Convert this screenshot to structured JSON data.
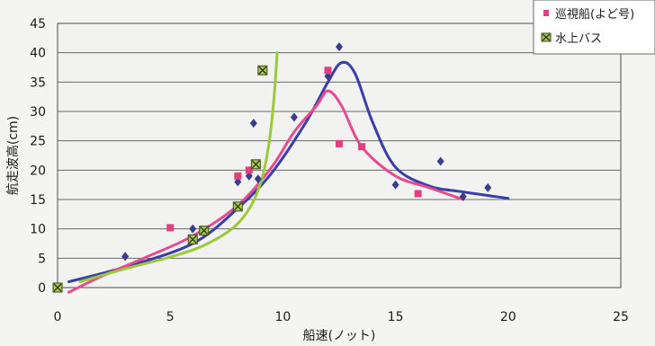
{
  "chart_data": {
    "type": "scatter",
    "xlabel": "船速(ノット)",
    "ylabel": "航走波高(cm)",
    "xlim": [
      0,
      25
    ],
    "ylim": [
      0,
      45
    ],
    "x_ticks": [
      "0",
      "5",
      "10",
      "15",
      "20",
      "25"
    ],
    "y_ticks": [
      "0",
      "5",
      "10",
      "15",
      "20",
      "25",
      "30",
      "35",
      "40",
      "45"
    ],
    "grid": "horizontal",
    "legend_position": "top-right",
    "series": [
      {
        "name": "",
        "marker": "diamond",
        "color": "#3b3c8c",
        "points": [
          [
            0,
            0
          ],
          [
            3,
            5.3
          ],
          [
            6,
            10
          ],
          [
            6.5,
            9.5
          ],
          [
            8,
            18
          ],
          [
            8.5,
            19
          ],
          [
            8.7,
            28
          ],
          [
            8.9,
            18.5
          ],
          [
            10.5,
            29
          ],
          [
            12,
            36
          ],
          [
            12.5,
            41
          ],
          [
            15,
            17.5
          ],
          [
            17,
            21.5
          ],
          [
            18,
            15.5
          ],
          [
            19.1,
            17
          ]
        ]
      },
      {
        "name": "巡視船(よど号)",
        "marker": "square",
        "color": "#e0407f",
        "points": [
          [
            0,
            0
          ],
          [
            5,
            10.2
          ],
          [
            6,
            8.3
          ],
          [
            8,
            19
          ],
          [
            8.5,
            20
          ],
          [
            12,
            37
          ],
          [
            12.5,
            24.5
          ],
          [
            13.5,
            24
          ],
          [
            16,
            16
          ]
        ]
      },
      {
        "name": "水上バス",
        "marker": "boxed-x",
        "color": "#a8c858",
        "points": [
          [
            0,
            0
          ],
          [
            6,
            8.2
          ],
          [
            6.5,
            9.7
          ],
          [
            8,
            13.8
          ],
          [
            8.8,
            21
          ],
          [
            9.1,
            37
          ]
        ]
      }
    ],
    "trend_lines": [
      {
        "color": "#3a3fa8",
        "points": [
          [
            0.5,
            1
          ],
          [
            3,
            3.5
          ],
          [
            6,
            7.5
          ],
          [
            8,
            13.5
          ],
          [
            9.5,
            19.5
          ],
          [
            11,
            28
          ],
          [
            12,
            35
          ],
          [
            12.6,
            38.3
          ],
          [
            13.2,
            36.5
          ],
          [
            14,
            28
          ],
          [
            15,
            20.5
          ],
          [
            16.5,
            17.3
          ],
          [
            18,
            16.3
          ],
          [
            20,
            15.2
          ]
        ]
      },
      {
        "color": "#e84a92",
        "points": [
          [
            0.5,
            -0.8
          ],
          [
            2,
            2
          ],
          [
            4,
            5.3
          ],
          [
            6,
            8.8
          ],
          [
            8,
            14
          ],
          [
            9.5,
            20.5
          ],
          [
            10.5,
            26.5
          ],
          [
            11.5,
            31
          ],
          [
            12,
            33.5
          ],
          [
            12.6,
            31
          ],
          [
            13.5,
            24
          ],
          [
            15,
            19
          ],
          [
            16.5,
            17
          ],
          [
            18,
            15
          ]
        ]
      },
      {
        "color": "#9ac93a",
        "points": [
          [
            1,
            1
          ],
          [
            3,
            3.2
          ],
          [
            5,
            5.2
          ],
          [
            6.5,
            7.2
          ],
          [
            7.8,
            10.2
          ],
          [
            8.6,
            14
          ],
          [
            9.1,
            19
          ],
          [
            9.4,
            25
          ],
          [
            9.6,
            32
          ],
          [
            9.75,
            40
          ]
        ]
      }
    ]
  }
}
